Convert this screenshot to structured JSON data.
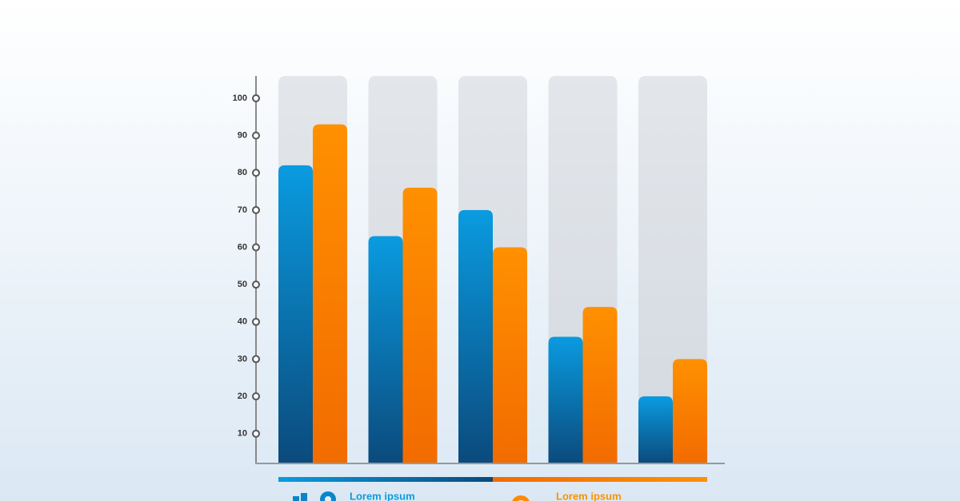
{
  "chart_data": {
    "type": "bar",
    "categories": [
      null,
      null,
      null,
      null,
      null
    ],
    "series": [
      {
        "name": "Lorem ipsum",
        "color": "#0a9be0",
        "values": [
          82,
          63,
          70,
          36,
          20
        ]
      },
      {
        "name": "Lorem ipsum",
        "color": "#ff9000",
        "values": [
          93,
          76,
          60,
          44,
          30
        ]
      }
    ],
    "ylim": [
      2,
      106
    ],
    "yticks": [
      10,
      20,
      30,
      40,
      50,
      60,
      70,
      80,
      90,
      100
    ]
  }
}
